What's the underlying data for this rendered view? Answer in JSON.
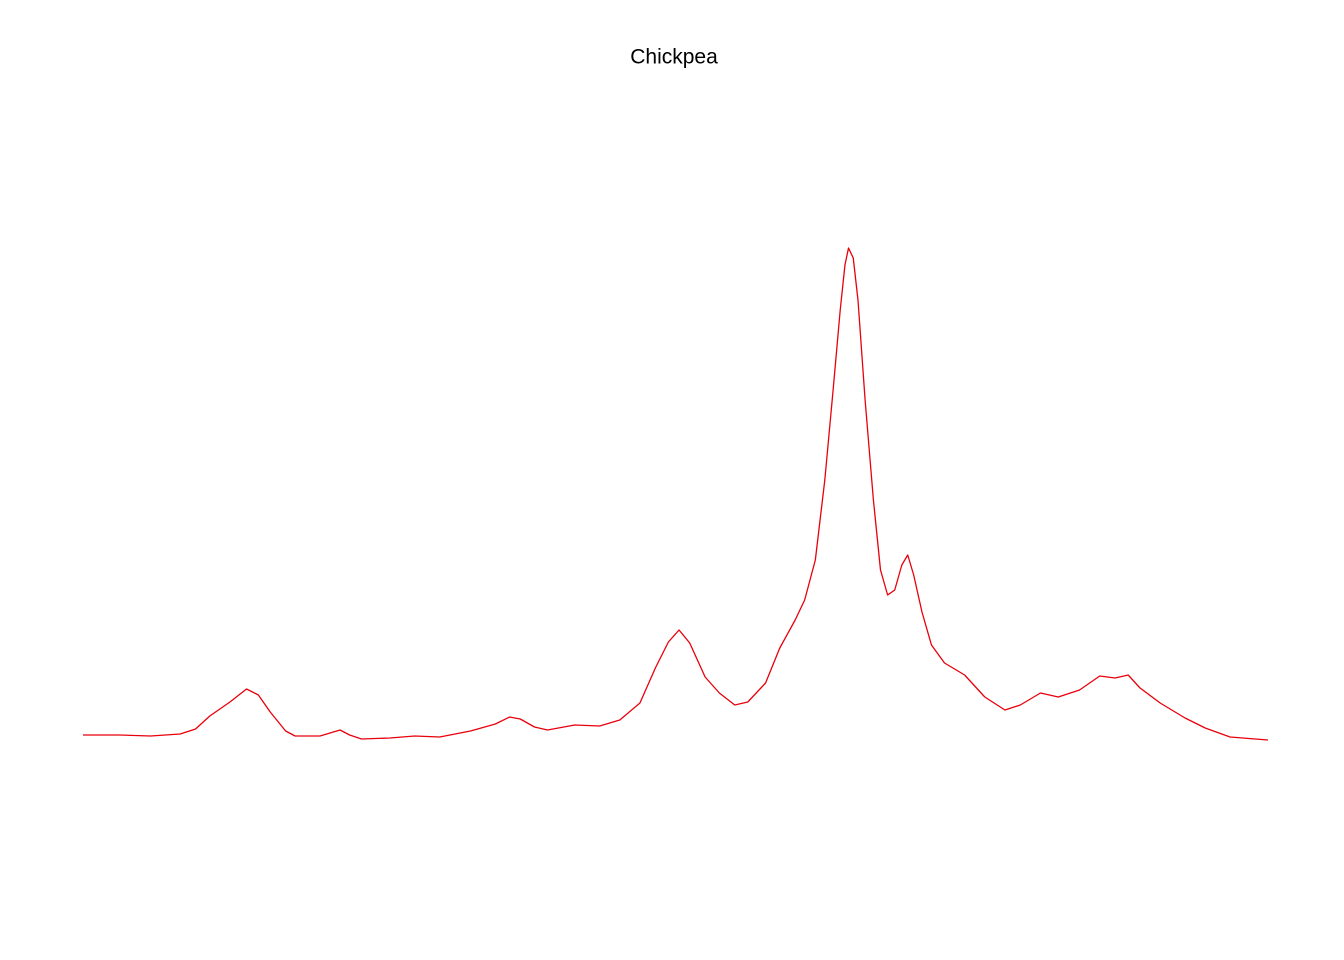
{
  "chart_data": {
    "type": "line",
    "title": "Chickpea",
    "color": "#e8000b",
    "xlim": [
      0,
      100
    ],
    "ylim": [
      -1.5,
      6
    ],
    "x": [
      0,
      3.1,
      5.7,
      8.2,
      9.5,
      10.7,
      12.4,
      13.8,
      14.8,
      15.8,
      17.1,
      17.9,
      20.0,
      21.7,
      22.5,
      23.5,
      25.9,
      28.0,
      30.1,
      32.7,
      34.8,
      36.0,
      36.9,
      38.1,
      39.2,
      41.5,
      43.6,
      45.3,
      47.0,
      48.3,
      49.4,
      50.3,
      51.2,
      52.5,
      53.7,
      55.0,
      56.1,
      57.6,
      58.8,
      60.1,
      60.9,
      61.8,
      62.6,
      63.3,
      63.9,
      64.3,
      64.6,
      65.0,
      65.4,
      66.0,
      66.7,
      67.3,
      67.9,
      68.5,
      69.1,
      69.6,
      70.1,
      70.8,
      71.6,
      72.7,
      74.4,
      76.1,
      77.8,
      79.1,
      80.8,
      82.3,
      84.1,
      85.8,
      87.1,
      88.2,
      89.2,
      90.9,
      93.0,
      94.7,
      96.8,
      100
    ],
    "values": [
      0.05,
      0.05,
      0.04,
      0.06,
      0.11,
      0.24,
      0.38,
      0.51,
      0.45,
      0.28,
      0.09,
      0.04,
      0.04,
      0.1,
      0.05,
      0.01,
      0.02,
      0.04,
      0.03,
      0.09,
      0.16,
      0.23,
      0.21,
      0.13,
      0.1,
      0.15,
      0.14,
      0.2,
      0.37,
      0.72,
      0.98,
      1.1,
      0.97,
      0.63,
      0.47,
      0.35,
      0.38,
      0.57,
      0.92,
      1.2,
      1.4,
      1.8,
      2.6,
      3.5,
      4.3,
      4.75,
      4.92,
      4.82,
      4.4,
      3.4,
      2.4,
      1.7,
      1.45,
      1.5,
      1.75,
      1.85,
      1.65,
      1.28,
      0.95,
      0.77,
      0.65,
      0.43,
      0.3,
      0.35,
      0.47,
      0.43,
      0.5,
      0.64,
      0.62,
      0.65,
      0.52,
      0.37,
      0.22,
      0.12,
      0.03,
      0
    ]
  }
}
